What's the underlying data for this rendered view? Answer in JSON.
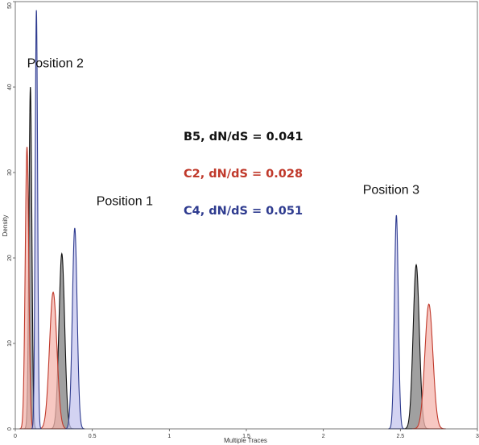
{
  "chart_data": {
    "type": "area",
    "title": "",
    "xlabel": "Multiple Traces",
    "ylabel": "Density",
    "xlim": [
      0,
      3
    ],
    "ylim": [
      0,
      50
    ],
    "xticks": [
      {
        "value": 0,
        "label": "0"
      },
      {
        "value": 0.5,
        "label": "0.5"
      },
      {
        "value": 1,
        "label": "1"
      },
      {
        "value": 1.5,
        "label": "1.5"
      },
      {
        "value": 2,
        "label": "2"
      },
      {
        "value": 2.5,
        "label": "2.5"
      },
      {
        "value": 3,
        "label": "3"
      }
    ],
    "yticks": [
      {
        "value": 0,
        "label": "0"
      },
      {
        "value": 10,
        "label": "10"
      },
      {
        "value": 20,
        "label": "20"
      },
      {
        "value": 30,
        "label": "30"
      },
      {
        "value": 40,
        "label": "40"
      },
      {
        "value": 50,
        "label": "50"
      }
    ],
    "grid": false,
    "series": [
      {
        "name": "B5, dN/dS = 0.041",
        "color": "#111111",
        "fill": "#808080",
        "peaks": [
          {
            "mean": 0.098,
            "sd": 0.0095,
            "height": 40
          },
          {
            "mean": 0.302,
            "sd": 0.0185,
            "height": 20.5
          },
          {
            "mean": 2.603,
            "sd": 0.02,
            "height": 19.2
          }
        ]
      },
      {
        "name": "C2, dN/dS = 0.028",
        "color": "#c0392b",
        "fill": "#f4b6ae",
        "peaks": [
          {
            "mean": 0.076,
            "sd": 0.0115,
            "height": 33
          },
          {
            "mean": 0.246,
            "sd": 0.024,
            "height": 16
          },
          {
            "mean": 2.685,
            "sd": 0.026,
            "height": 14.6
          }
        ]
      },
      {
        "name": "C4, dN/dS = 0.051",
        "color": "#2e3b8f",
        "fill": "#c4c4ee",
        "peaks": [
          {
            "mean": 0.137,
            "sd": 0.0078,
            "height": 49
          },
          {
            "mean": 0.386,
            "sd": 0.0155,
            "height": 23.5
          },
          {
            "mean": 2.474,
            "sd": 0.0125,
            "height": 25
          }
        ]
      }
    ],
    "annotations": [
      {
        "text": "Position 2",
        "x": 0.26,
        "y": 42.3
      },
      {
        "text": "Position 1",
        "x": 0.71,
        "y": 26.2
      },
      {
        "text": "Position 3",
        "x": 2.44,
        "y": 27.5
      }
    ]
  }
}
